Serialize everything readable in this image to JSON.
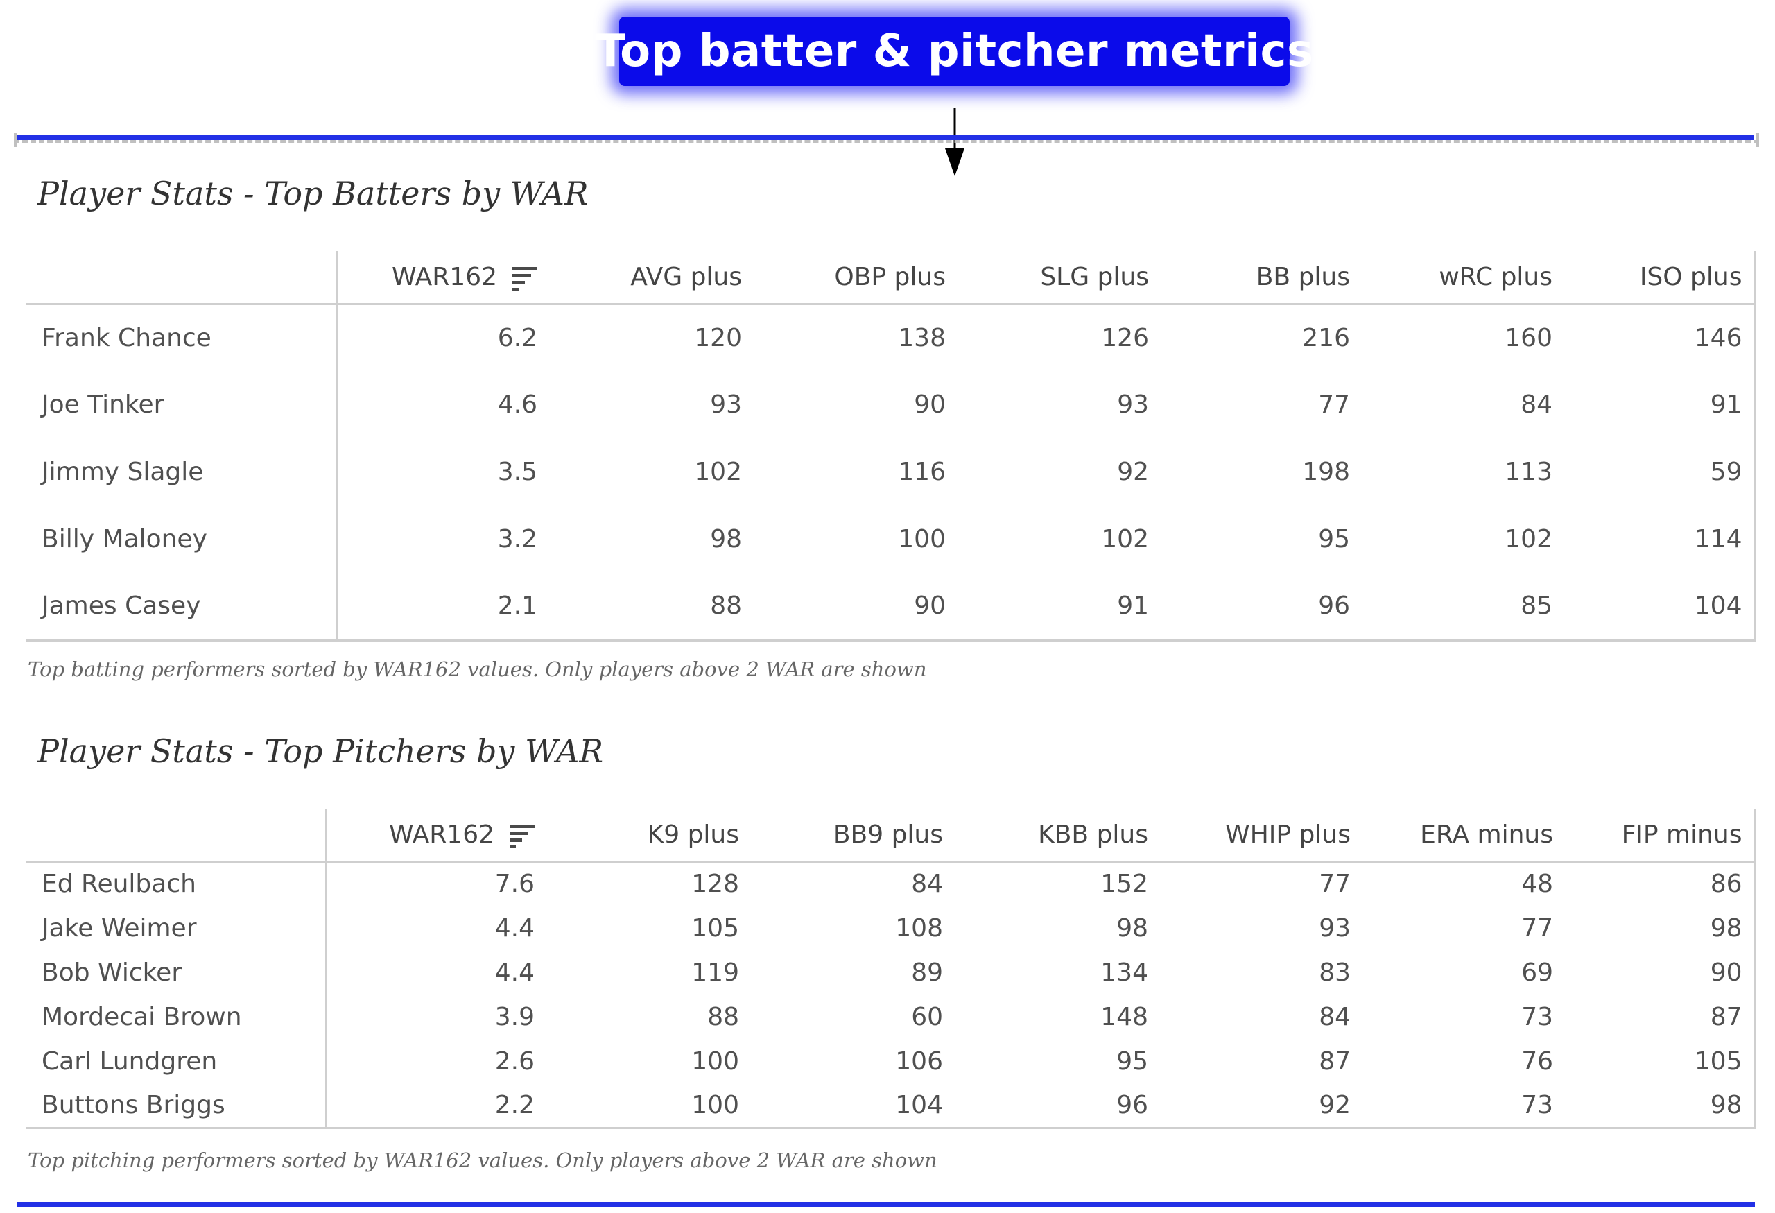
{
  "banner": {
    "title": "Top batter & pitcher metrics",
    "color": "#0b0bea"
  },
  "accent_color": "#2230e6",
  "batters": {
    "title": "Player Stats - Top Batters by WAR",
    "sort_icon": "sort-descending-icon",
    "columns": [
      "",
      "WAR162",
      "AVG plus",
      "OBP plus",
      "SLG plus",
      "BB plus",
      "wRC plus",
      "ISO plus"
    ],
    "rows": [
      [
        "Frank Chance",
        "6.2",
        "120",
        "138",
        "126",
        "216",
        "160",
        "146"
      ],
      [
        "Joe Tinker",
        "4.6",
        "93",
        "90",
        "93",
        "77",
        "84",
        "91"
      ],
      [
        "Jimmy Slagle",
        "3.5",
        "102",
        "116",
        "92",
        "198",
        "113",
        "59"
      ],
      [
        "Billy Maloney",
        "3.2",
        "98",
        "100",
        "102",
        "95",
        "102",
        "114"
      ],
      [
        "James Casey",
        "2.1",
        "88",
        "90",
        "91",
        "96",
        "85",
        "104"
      ]
    ],
    "caption": "Top batting performers sorted by WAR162 values. Only players above 2 WAR are shown"
  },
  "pitchers": {
    "title": "Player Stats - Top Pitchers by WAR",
    "sort_icon": "sort-descending-icon",
    "columns": [
      "",
      "WAR162",
      "K9 plus",
      "BB9 plus",
      "KBB plus",
      "WHIP plus",
      "ERA minus",
      "FIP minus"
    ],
    "rows": [
      [
        "Ed Reulbach",
        "7.6",
        "128",
        "84",
        "152",
        "77",
        "48",
        "86"
      ],
      [
        "Jake Weimer",
        "4.4",
        "105",
        "108",
        "98",
        "93",
        "77",
        "98"
      ],
      [
        "Bob Wicker",
        "4.4",
        "119",
        "89",
        "134",
        "83",
        "69",
        "90"
      ],
      [
        "Mordecai Brown",
        "3.9",
        "88",
        "60",
        "148",
        "84",
        "73",
        "87"
      ],
      [
        "Carl Lundgren",
        "2.6",
        "100",
        "106",
        "95",
        "87",
        "76",
        "105"
      ],
      [
        "Buttons Briggs",
        "2.2",
        "100",
        "104",
        "96",
        "92",
        "73",
        "98"
      ]
    ],
    "caption": "Top pitching performers sorted by WAR162 values. Only players above 2 WAR are shown"
  }
}
